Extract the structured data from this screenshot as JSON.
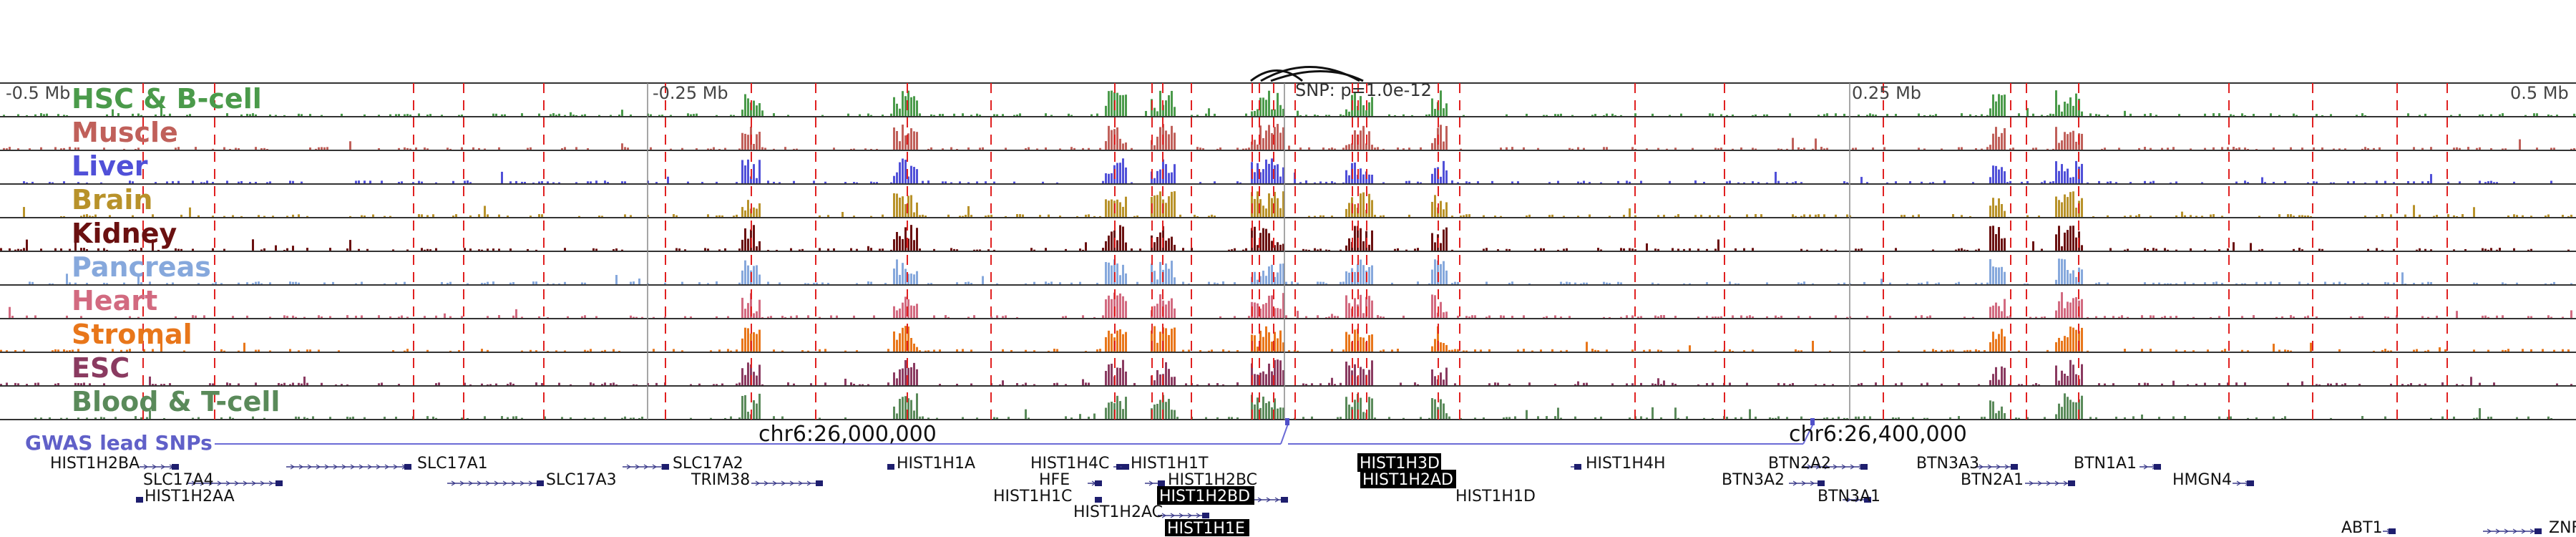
{
  "browser": {
    "ruler": [
      "-0.5 Mb",
      "-0.25 Mb",
      "0.25 Mb",
      "0.5 Mb"
    ],
    "snp_label": "SNP: p=1.0e-12",
    "coordinates": [
      "chr6:26,000,000",
      "chr6:26,400,000"
    ],
    "gwas_label": "GWAS lead SNPs"
  },
  "tracks": [
    {
      "label": "HSC & B-cell",
      "color": "#4a9a4a"
    },
    {
      "label": "Muscle",
      "color": "#c0605a"
    },
    {
      "label": "Liver",
      "color": "#5050d8"
    },
    {
      "label": "Brain",
      "color": "#b8922a"
    },
    {
      "label": "Kidney",
      "color": "#6a1010"
    },
    {
      "label": "Pancreas",
      "color": "#86a8dc"
    },
    {
      "label": "Heart",
      "color": "#d26a80"
    },
    {
      "label": "Stromal",
      "color": "#e8761a"
    },
    {
      "label": "ESC",
      "color": "#8a3a60"
    },
    {
      "label": "Blood & T-cell",
      "color": "#5a8a5a"
    }
  ],
  "genes": [
    {
      "name": "HIST1H2BA"
    },
    {
      "name": "SLC17A1"
    },
    {
      "name": "SLC17A2"
    },
    {
      "name": "HIST1H1A"
    },
    {
      "name": "HIST1H4C"
    },
    {
      "name": "HIST1H1T"
    },
    {
      "name": "HIST1H3D",
      "highlight": true
    },
    {
      "name": "HIST1H4H"
    },
    {
      "name": "BTN2A2"
    },
    {
      "name": "BTN3A3"
    },
    {
      "name": "BTN1A1"
    },
    {
      "name": "SLC17A4"
    },
    {
      "name": "SLC17A3"
    },
    {
      "name": "TRIM38"
    },
    {
      "name": "HFE"
    },
    {
      "name": "HIST1H2BC"
    },
    {
      "name": "HIST1H2AD",
      "highlight": true
    },
    {
      "name": "BTN3A2"
    },
    {
      "name": "BTN2A1"
    },
    {
      "name": "HMGN4"
    },
    {
      "name": "HIST1H2AA"
    },
    {
      "name": "HIST1H1C"
    },
    {
      "name": "HIST1H2BD",
      "highlight": true
    },
    {
      "name": "HIST1H1D"
    },
    {
      "name": "BTN3A1"
    },
    {
      "name": "HIST1H2AC"
    },
    {
      "name": "HIST1H1E",
      "highlight": true
    },
    {
      "name": "ABT1"
    },
    {
      "name": "ZNF"
    }
  ]
}
